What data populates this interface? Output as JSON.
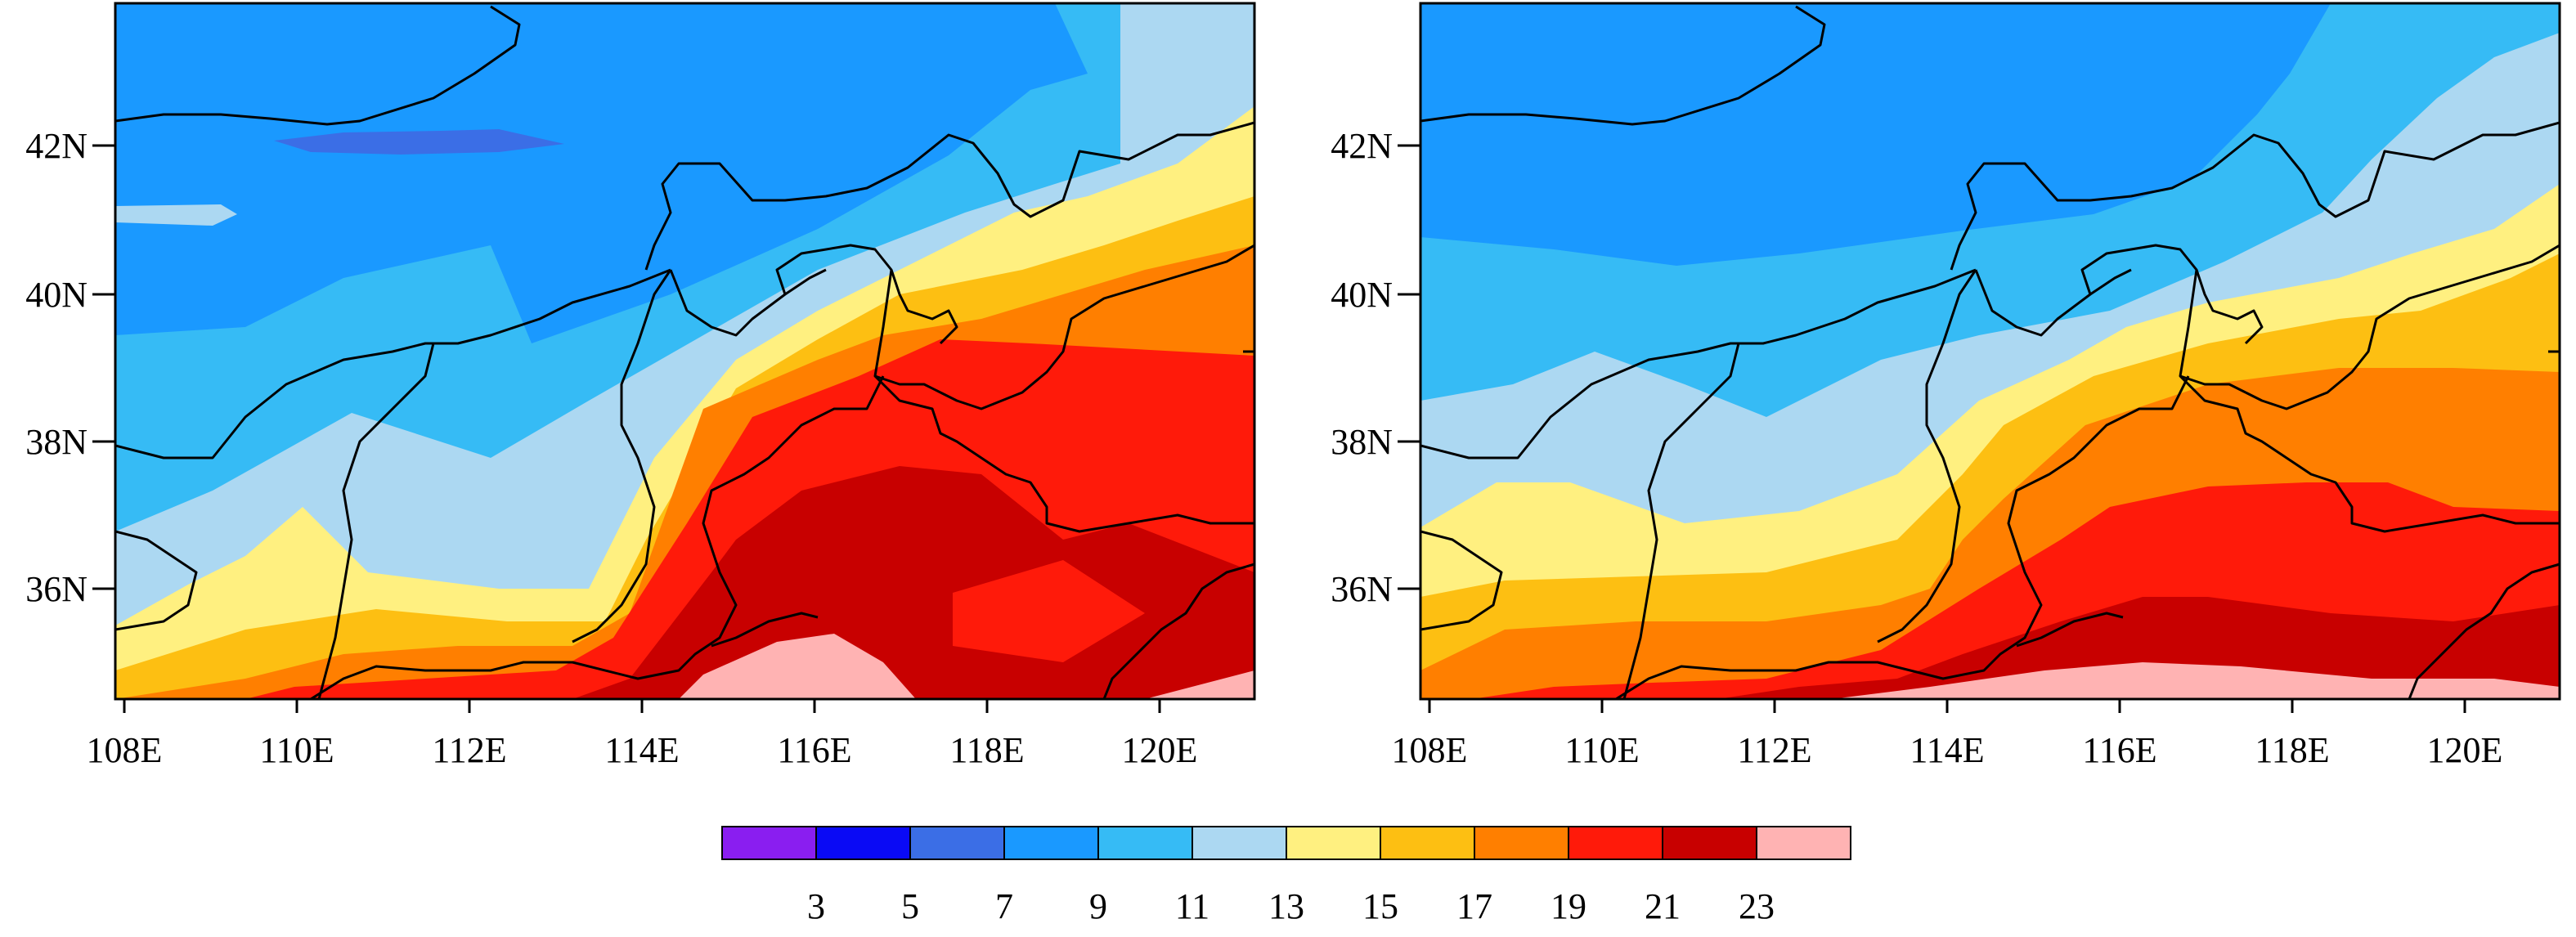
{
  "lon_ticks": [
    "108E",
    "110E",
    "112E",
    "114E",
    "116E",
    "118E",
    "120E"
  ],
  "lat_ticks": [
    "36N",
    "38N",
    "40N",
    "42N"
  ],
  "colorbar": {
    "colors": [
      "#8a1ef0",
      "#0a0af5",
      "#3b6ee6",
      "#1a99ff",
      "#36bbf5",
      "#acd8f2",
      "#fff080",
      "#fdbf12",
      "#ff7f00",
      "#ff1a0a",
      "#c80000",
      "#ffb3b3"
    ],
    "labels": [
      "3",
      "5",
      "7",
      "9",
      "11",
      "13",
      "15",
      "17",
      "19",
      "21",
      "23"
    ]
  },
  "maps": [
    {
      "name": "left-map"
    },
    {
      "name": "right-map"
    }
  ]
}
